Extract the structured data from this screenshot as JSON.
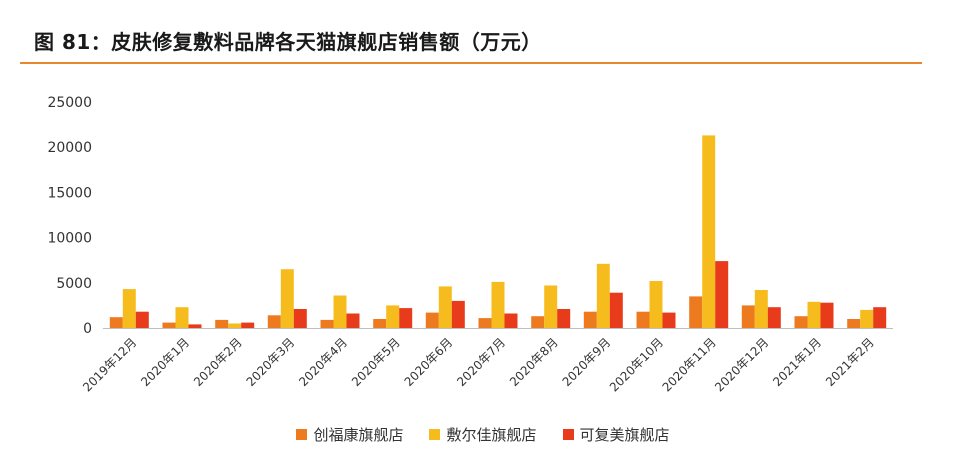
{
  "title": "图 81：皮肤修复敷料品牌各天猫旗舰店销售额（万元）",
  "colors": {
    "rule": "#e8882e",
    "series": [
      "#ee7a1f",
      "#f6bc1d",
      "#e83b1c"
    ]
  },
  "chart_data": {
    "type": "bar",
    "title": "图 81：皮肤修复敷料品牌各天猫旗舰店销售额（万元）",
    "xlabel": "",
    "ylabel": "",
    "ylim": [
      0,
      25000
    ],
    "yticks": [
      0,
      5000,
      10000,
      15000,
      20000,
      25000
    ],
    "grid": false,
    "legend_position": "bottom",
    "categories": [
      "2019年12月",
      "2020年1月",
      "2020年2月",
      "2020年3月",
      "2020年4月",
      "2020年5月",
      "2020年6月",
      "2020年7月",
      "2020年8月",
      "2020年9月",
      "2020年10月",
      "2020年11月",
      "2020年12月",
      "2021年1月",
      "2021年2月"
    ],
    "series": [
      {
        "name": "创福康旗舰店",
        "color": "#ee7a1f",
        "values": [
          1200,
          600,
          900,
          1400,
          900,
          1000,
          1700,
          1100,
          1300,
          1800,
          1800,
          3500,
          2500,
          1300,
          1000
        ]
      },
      {
        "name": "敷尔佳旗舰店",
        "color": "#f6bc1d",
        "values": [
          4300,
          2300,
          500,
          6500,
          3600,
          2500,
          4600,
          5100,
          4700,
          7100,
          5200,
          21300,
          4200,
          2900,
          2000
        ]
      },
      {
        "name": "可复美旗舰店",
        "color": "#e83b1c",
        "values": [
          1800,
          400,
          600,
          2100,
          1600,
          2200,
          3000,
          1600,
          2100,
          3900,
          1700,
          7400,
          2300,
          2800,
          2300
        ]
      }
    ]
  }
}
